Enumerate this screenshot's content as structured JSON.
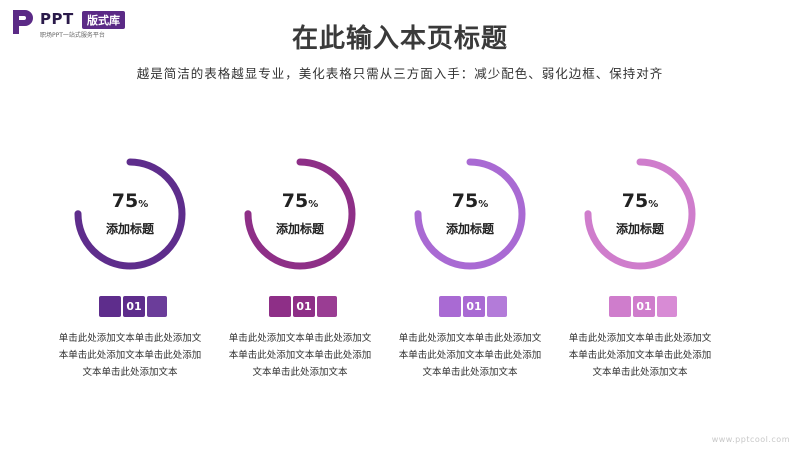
{
  "logo": {
    "name": "PPT",
    "badge": "版式库",
    "tagline": "职场PPT一站式服务平台",
    "icon": "ppt-logo-icon",
    "color": "#5b2a86"
  },
  "title": "在此输入本页标题",
  "subtitle": "越是简洁的表格越显专业，美化表格只需从三方面入手：减少配色、弱化边框、保持对齐",
  "cards": [
    {
      "percent": 75,
      "percent_label": "75",
      "percent_sign": "%",
      "title": "添加标题",
      "badge": "01",
      "color": "#5e2d8c",
      "light": "#6b3d9a",
      "desc": [
        "单击此处添加文本单击此处添加文",
        "本单击此处添加文本单击此处添加",
        "文本单击此处添加文本"
      ]
    },
    {
      "percent": 75,
      "percent_label": "75",
      "percent_sign": "%",
      "title": "添加标题",
      "badge": "01",
      "color": "#8e2f87",
      "light": "#9a3d93",
      "desc": [
        "单击此处添加文本单击此处添加文",
        "本单击此处添加文本单击此处添加",
        "文本单击此处添加文本"
      ]
    },
    {
      "percent": 75,
      "percent_label": "75",
      "percent_sign": "%",
      "title": "添加标题",
      "badge": "01",
      "color": "#a96ad3",
      "light": "#b37bd9",
      "desc": [
        "单击此处添加文本单击此处添加文",
        "本单击此处添加文本单击此处添加",
        "文本单击此处添加文本"
      ]
    },
    {
      "percent": 75,
      "percent_label": "75",
      "percent_sign": "%",
      "title": "添加标题",
      "badge": "01",
      "color": "#cf7dcc",
      "light": "#d88bd5",
      "desc": [
        "单击此处添加文本单击此处添加文",
        "本单击此处添加文本单击此处添加",
        "文本单击此处添加文本"
      ]
    }
  ],
  "watermark": "www.pptcool.com"
}
